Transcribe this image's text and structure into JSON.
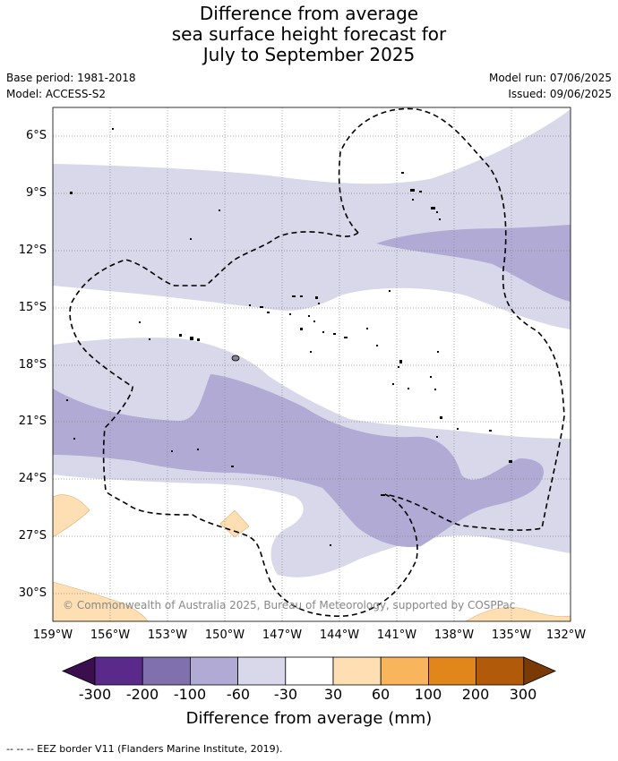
{
  "title": {
    "line1": "Difference from average",
    "line2": "sea surface height forecast for",
    "line3": "July to September 2025"
  },
  "meta": {
    "base_period": "Base period: 1981-2018",
    "model": "Model: ACCESS-S2",
    "model_run": "Model run: 07/06/2025",
    "issued": "Issued: 09/06/2025"
  },
  "map": {
    "lat_labels": [
      "6°S",
      "9°S",
      "12°S",
      "15°S",
      "18°S",
      "21°S",
      "24°S",
      "27°S",
      "30°S"
    ],
    "lon_labels": [
      "159°W",
      "156°W",
      "153°W",
      "150°W",
      "147°W",
      "144°W",
      "141°W",
      "138°W",
      "135°W",
      "132°W"
    ],
    "copyright": "© Commonwealth of Australia 2025, Bureau of Meteorology, supported by COSPPac"
  },
  "colorbar": {
    "title": "Difference from average (mm)",
    "tick_labels": [
      "-300",
      "-200",
      "-100",
      "-60",
      "-30",
      "30",
      "60",
      "100",
      "200",
      "300"
    ],
    "colors": {
      "below_-300": "#3b0f4f",
      "-300_-200": "#5a2a8a",
      "-200_-100": "#8070ae",
      "-100_-60": "#b0aad4",
      "-60_-30": "#d8d8ea",
      "-30_30": "#ffffff",
      "30_60": "#fddfb3",
      "60_100": "#f9b55c",
      "100_200": "#e0861a",
      "200_300": "#b05a0a",
      "above_300": "#7a3a06"
    }
  },
  "footnote": "--  --  -- EEZ border V11 (Flanders Marine Institute, 2019)."
}
